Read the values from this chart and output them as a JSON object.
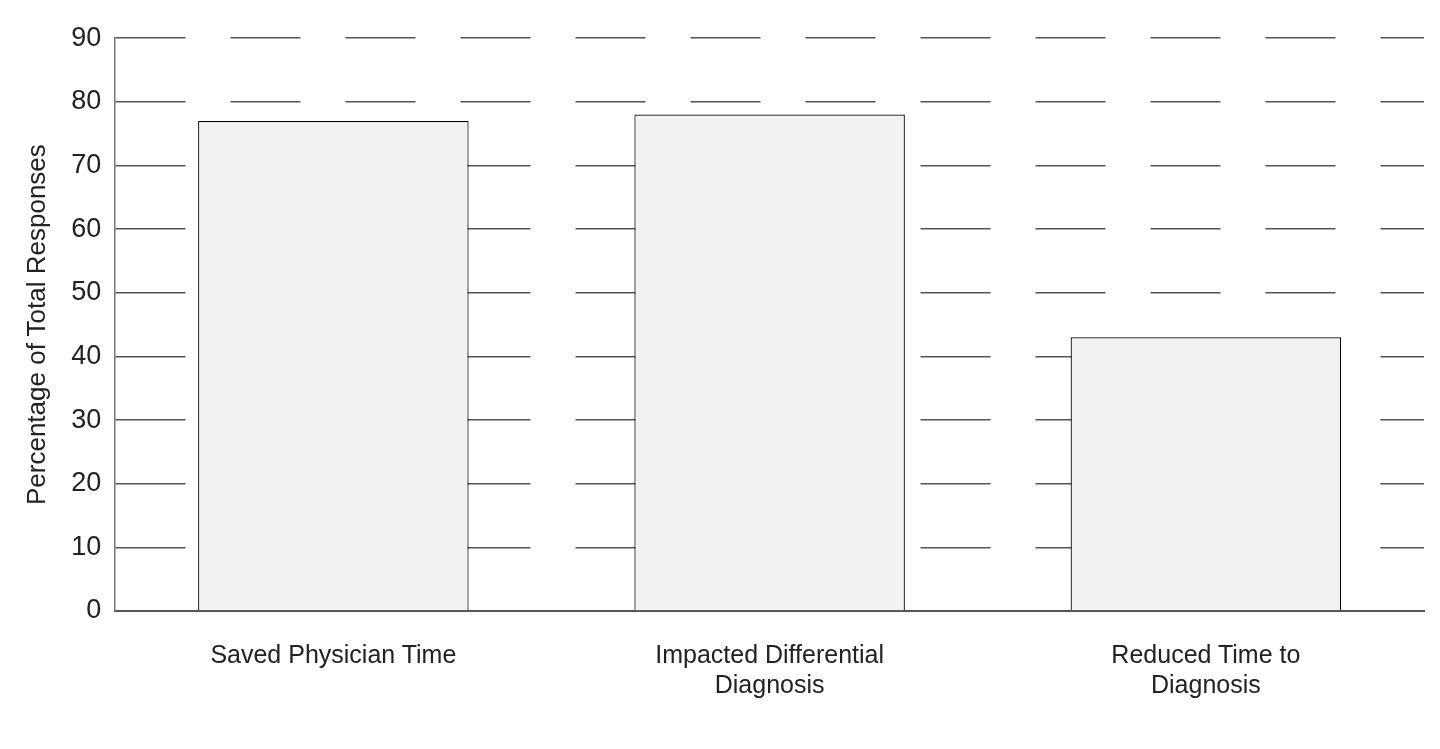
{
  "chart_data": {
    "type": "bar",
    "ylabel": "Percentage of Total Responses",
    "categories": [
      "Saved Physician Time",
      "Impacted Differential Diagnosis",
      "Reduced Time to Diagnosis"
    ],
    "values": [
      77,
      78,
      43
    ],
    "color": "#f2f2f2",
    "ylim": [
      0,
      90
    ],
    "yticks": [
      0,
      10,
      20,
      30,
      40,
      50,
      60,
      70,
      80,
      90
    ],
    "grid": "y",
    "legend": false
  }
}
